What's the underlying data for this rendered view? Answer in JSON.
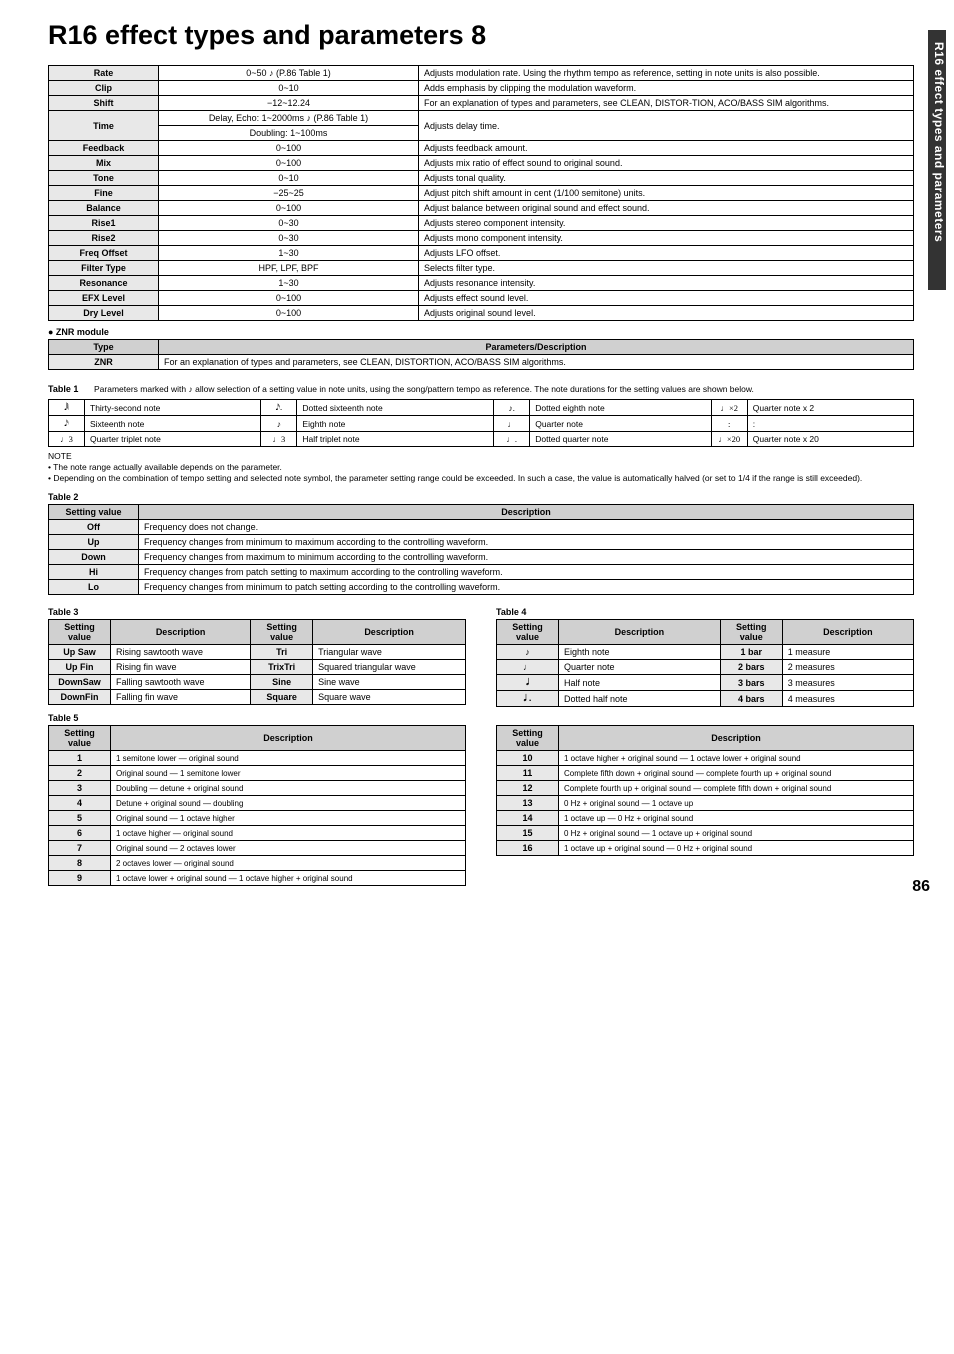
{
  "title": "R16 effect types and parameters 8",
  "sidebar_text": "R16 effect types and parameters",
  "page_number": "86",
  "main_table": [
    {
      "name": "Rate",
      "range": "0~50 ♪ (P.86 Table 1)",
      "desc": "Adjusts modulation rate. Using the rhythm tempo as reference, setting in note units is also possible."
    },
    {
      "name": "Clip",
      "range": "0~10",
      "desc": "Adds emphasis by clipping the modulation waveform."
    },
    {
      "name": "Shift",
      "range": "−12~12.24",
      "desc": "For an explanation of types and parameters, see CLEAN, DISTOR-TION, ACO/BASS SIM algorithms."
    },
    {
      "name": "Time",
      "range_a": "Delay, Echo: 1~2000ms ♪ (P.86 Table 1)",
      "range_b": "Doubling: 1~100ms",
      "desc": "Adjusts delay time."
    },
    {
      "name": "Feedback",
      "range": "0~100",
      "desc": "Adjusts feedback amount."
    },
    {
      "name": "Mix",
      "range": "0~100",
      "desc": "Adjusts mix ratio of effect sound to original sound."
    },
    {
      "name": "Tone",
      "range": "0~10",
      "desc": "Adjusts tonal quality."
    },
    {
      "name": "Fine",
      "range": "−25~25",
      "desc": "Adjust pitch shift amount in cent (1/100 semitone) units."
    },
    {
      "name": "Balance",
      "range": "0~100",
      "desc": "Adjust balance between original sound and effect sound."
    },
    {
      "name": "Rise1",
      "range": "0~30",
      "desc": "Adjusts stereo component intensity."
    },
    {
      "name": "Rise2",
      "range": "0~30",
      "desc": "Adjusts mono component intensity."
    },
    {
      "name": "Freq Offset",
      "range": "1~30",
      "desc": "Adjusts LFO offset."
    },
    {
      "name": "Filter Type",
      "range": "HPF, LPF, BPF",
      "desc": "Selects filter type."
    },
    {
      "name": "Resonance",
      "range": "1~30",
      "desc": "Adjusts resonance intensity."
    },
    {
      "name": "EFX Level",
      "range": "0~100",
      "desc": "Adjusts effect sound level."
    },
    {
      "name": "Dry Level",
      "range": "0~100",
      "desc": "Adjusts original sound level."
    }
  ],
  "znr_module_label": "● ZNR module",
  "znr": {
    "header_type": "Type",
    "header_param": "Parameters/Description",
    "type": "ZNR",
    "desc": "For an explanation of types and parameters, see CLEAN, DISTORTION, ACO/BASS SIM algorithms."
  },
  "table1": {
    "label": "Table 1",
    "intro": "Parameters marked with ♪ allow selection of a setting value in note units, using the song/pattern tempo as reference. The note durations for the setting values are shown below.",
    "rows": [
      [
        "𝅘𝅥𝅲",
        "Thirty-second note",
        "𝅘𝅥𝅯.",
        "Dotted sixteenth note",
        "♪.",
        "Dotted eighth note",
        "♩×2",
        "Quarter note x 2"
      ],
      [
        "𝅘𝅥𝅯",
        "Sixteenth note",
        "♪",
        "Eighth note",
        "♩",
        "Quarter note",
        ":",
        ":"
      ],
      [
        "♩3",
        "Quarter triplet note",
        "♩3",
        "Half triplet note",
        "♩.",
        "Dotted quarter note",
        "♩×20",
        "Quarter note x 20"
      ]
    ]
  },
  "note_block": {
    "heading": "NOTE",
    "line1": "• The note range actually available depends on the parameter.",
    "line2": "• Depending on the combination of tempo setting and selected note symbol, the parameter setting range could be exceeded. In such a case, the value is automatically halved (or set to 1/4 if the range is still exceeded)."
  },
  "table2": {
    "label": "Table 2",
    "header_setting": "Setting value",
    "header_desc": "Description",
    "rows": [
      {
        "v": "Off",
        "d": "Frequency does not change."
      },
      {
        "v": "Up",
        "d": "Frequency changes from minimum to maximum according to the controlling waveform."
      },
      {
        "v": "Down",
        "d": "Frequency changes from maximum to minimum according to the controlling waveform."
      },
      {
        "v": "Hi",
        "d": "Frequency changes from patch setting to maximum according to the controlling waveform."
      },
      {
        "v": "Lo",
        "d": "Frequency changes from minimum to patch setting according to the controlling waveform."
      }
    ]
  },
  "table3": {
    "label": "Table 3",
    "headers": [
      "Setting value",
      "Description",
      "Setting value",
      "Description"
    ],
    "rows": [
      [
        "Up Saw",
        "Rising sawtooth wave",
        "Tri",
        "Triangular wave"
      ],
      [
        "Up Fin",
        "Rising fin wave",
        "TrixTri",
        "Squared triangular wave"
      ],
      [
        "DownSaw",
        "Falling sawtooth wave",
        "Sine",
        "Sine wave"
      ],
      [
        "DownFin",
        "Falling fin wave",
        "Square",
        "Square wave"
      ]
    ]
  },
  "table4": {
    "label": "Table 4",
    "headers": [
      "Setting value",
      "Description",
      "Setting value",
      "Description"
    ],
    "rows": [
      [
        "♪",
        "Eighth note",
        "1 bar",
        "1 measure"
      ],
      [
        "♩",
        "Quarter note",
        "2 bars",
        "2 measures"
      ],
      [
        "𝅗𝅥",
        "Half note",
        "3 bars",
        "3 measures"
      ],
      [
        "𝅗𝅥 .",
        "Dotted half note",
        "4 bars",
        "4 measures"
      ]
    ]
  },
  "table5": {
    "label": "Table 5",
    "header_setting": "Setting value",
    "header_desc": "Description",
    "left": [
      {
        "v": "1",
        "d": "1 semitone lower — original sound"
      },
      {
        "v": "2",
        "d": "Original sound — 1 semitone lower"
      },
      {
        "v": "3",
        "d": "Doubling — detune + original sound"
      },
      {
        "v": "4",
        "d": "Detune + original sound — doubling"
      },
      {
        "v": "5",
        "d": "Original sound — 1 octave higher"
      },
      {
        "v": "6",
        "d": "1 octave higher — original sound"
      },
      {
        "v": "7",
        "d": "Original sound — 2 octaves lower"
      },
      {
        "v": "8",
        "d": "2 octaves lower — original sound"
      },
      {
        "v": "9",
        "d": "1 octave lower + original sound — 1 octave higher + original sound"
      }
    ],
    "right": [
      {
        "v": "10",
        "d": "1 octave higher + original sound — 1 octave lower + original sound"
      },
      {
        "v": "11",
        "d": "Complete fifth down + original sound — complete fourth up + original sound"
      },
      {
        "v": "12",
        "d": "Complete fourth up + original sound — complete fifth down + original sound"
      },
      {
        "v": "13",
        "d": "0 Hz + original sound — 1 octave up"
      },
      {
        "v": "14",
        "d": "1 octave up — 0 Hz + original sound"
      },
      {
        "v": "15",
        "d": "0 Hz + original sound — 1 octave up + original sound"
      },
      {
        "v": "16",
        "d": "1 octave up + original sound — 0 Hz + original sound"
      }
    ]
  }
}
